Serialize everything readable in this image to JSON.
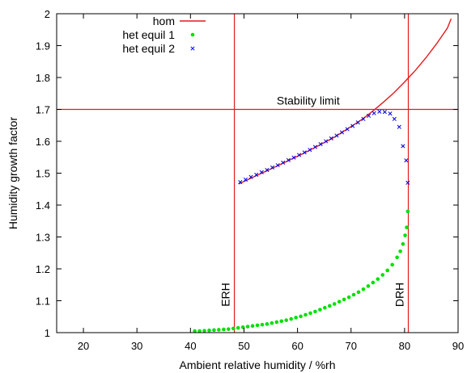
{
  "chart_data": {
    "type": "line",
    "xlabel": "Ambient relative humidity / %rh",
    "ylabel": "Humidity growth factor",
    "xlim": [
      15,
      90
    ],
    "ylim": [
      1,
      2
    ],
    "x_ticks": [
      20,
      30,
      40,
      50,
      60,
      70,
      80,
      90
    ],
    "y_ticks": [
      1,
      1.1,
      1.2,
      1.3,
      1.4,
      1.5,
      1.6,
      1.7,
      1.8,
      1.9,
      2
    ],
    "x_tick_labels": [
      "20",
      "30",
      "40",
      "50",
      "60",
      "70",
      "80",
      "90"
    ],
    "y_tick_labels": [
      "1",
      "1.1",
      "1.2",
      "1.3",
      "1.4",
      "1.5",
      "1.6",
      "1.7",
      "1.8",
      "1.9",
      "2"
    ],
    "grid": false,
    "legend_position": "top-left",
    "colors": {
      "hom": "#e41a1c",
      "het1": "#00e000",
      "het2": "#0000e0",
      "ref": "#e41a1c"
    },
    "series": [
      {
        "name": "hom",
        "style": "line",
        "x": [
          49,
          52,
          55,
          58,
          61,
          64,
          67,
          70,
          72,
          74,
          76,
          78,
          80,
          82,
          84,
          86,
          88,
          88.7
        ],
        "y": [
          1.466,
          1.49,
          1.513,
          1.537,
          1.561,
          1.587,
          1.614,
          1.646,
          1.668,
          1.694,
          1.722,
          1.752,
          1.786,
          1.822,
          1.862,
          1.906,
          1.955,
          1.984
        ]
      },
      {
        "name": "het equil 1",
        "style": "points",
        "x": [
          40.8,
          41.7,
          42.6,
          43.5,
          44.4,
          45.3,
          46.2,
          47.1,
          48,
          48.9,
          49.8,
          50.7,
          51.6,
          52.5,
          53.4,
          54.3,
          55.2,
          56.1,
          57,
          57.9,
          58.8,
          59.7,
          60.6,
          61.5,
          62.4,
          63.3,
          64.2,
          65.1,
          66,
          66.9,
          67.8,
          68.7,
          69.6,
          70.5,
          71.4,
          72.3,
          73.2,
          74.1,
          75,
          75.9,
          76.8,
          77.7,
          78.6,
          79.2,
          79.7,
          80.1,
          80.4,
          80.6
        ],
        "y": [
          1.005,
          1.005,
          1.006,
          1.007,
          1.008,
          1.009,
          1.01,
          1.011,
          1.013,
          1.015,
          1.017,
          1.019,
          1.021,
          1.023,
          1.025,
          1.027,
          1.03,
          1.033,
          1.036,
          1.039,
          1.043,
          1.047,
          1.051,
          1.056,
          1.061,
          1.066,
          1.072,
          1.078,
          1.084,
          1.09,
          1.097,
          1.104,
          1.111,
          1.119,
          1.127,
          1.136,
          1.146,
          1.157,
          1.168,
          1.181,
          1.195,
          1.213,
          1.236,
          1.255,
          1.278,
          1.305,
          1.33,
          1.38
        ]
      },
      {
        "name": "het equil 2",
        "style": "points",
        "x": [
          49.3,
          50.3,
          51.3,
          52.3,
          53.3,
          54.3,
          55.3,
          56.3,
          57.3,
          58.3,
          59.3,
          60.3,
          61.3,
          62.3,
          63.3,
          64.3,
          65.3,
          66.3,
          67.3,
          68.3,
          69.3,
          70.3,
          71.3,
          72.3,
          73.3,
          74.3,
          75.3,
          76.3,
          77.3,
          78.1,
          79,
          79.7,
          80.3,
          80.6
        ],
        "y": [
          1.472,
          1.48,
          1.488,
          1.495,
          1.503,
          1.51,
          1.518,
          1.525,
          1.533,
          1.541,
          1.549,
          1.557,
          1.565,
          1.573,
          1.582,
          1.591,
          1.6,
          1.609,
          1.618,
          1.628,
          1.638,
          1.648,
          1.659,
          1.67,
          1.68,
          1.688,
          1.693,
          1.692,
          1.687,
          1.67,
          1.645,
          1.585,
          1.54,
          1.47
        ]
      }
    ],
    "reference_lines": [
      {
        "orientation": "horizontal",
        "value": 1.7,
        "label": "Stability limit"
      },
      {
        "orientation": "vertical",
        "value": 48.2,
        "label": "ERH"
      },
      {
        "orientation": "vertical",
        "value": 80.7,
        "label": "DRH"
      }
    ]
  }
}
